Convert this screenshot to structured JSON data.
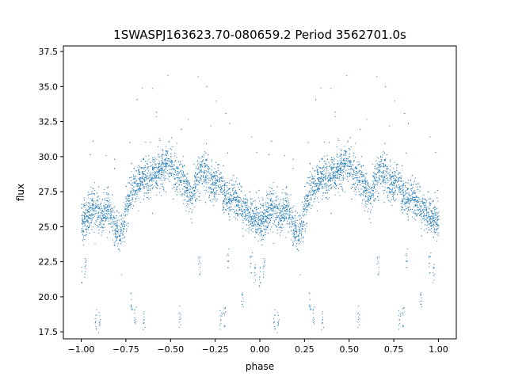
{
  "chart_data": {
    "type": "scatter",
    "title": "1SWASPJ163623.70-080659.2 Period 3562701.0s",
    "xlabel": "phase",
    "ylabel": "flux",
    "xlim": [
      -1.1,
      1.1
    ],
    "ylim": [
      17.0,
      37.9
    ],
    "xticks": [
      -1.0,
      -0.75,
      -0.5,
      -0.25,
      0.0,
      0.25,
      0.5,
      0.75,
      1.0
    ],
    "xtick_labels": [
      "−1.00",
      "−0.75",
      "−0.50",
      "−0.25",
      "0.00",
      "0.25",
      "0.50",
      "0.75",
      "1.00"
    ],
    "yticks": [
      17.5,
      20.0,
      22.5,
      25.0,
      27.5,
      30.0,
      32.5,
      35.0,
      37.5
    ],
    "ytick_labels": [
      "17.5",
      "20.0",
      "22.5",
      "25.0",
      "27.5",
      "30.0",
      "32.5",
      "35.0",
      "37.5"
    ],
    "grid": false,
    "marker_color": "#1f77b4",
    "series": [
      {
        "x_range": [
          -1.0,
          1.0
        ],
        "mirrored_period": 1.0,
        "phase_profile": [
          [
            0.0,
            25.4
          ],
          [
            0.03,
            25.6
          ],
          [
            0.06,
            26.6
          ],
          [
            0.09,
            26.0
          ],
          [
            0.12,
            25.6
          ],
          [
            0.15,
            26.4
          ],
          [
            0.18,
            25.3
          ],
          [
            0.2,
            24.8
          ],
          [
            0.22,
            24.6
          ],
          [
            0.25,
            26.2
          ],
          [
            0.28,
            27.8
          ],
          [
            0.31,
            28.0
          ],
          [
            0.34,
            28.6
          ],
          [
            0.37,
            28.4
          ],
          [
            0.4,
            28.8
          ],
          [
            0.43,
            28.9
          ],
          [
            0.46,
            29.2
          ],
          [
            0.5,
            29.6
          ],
          [
            0.53,
            28.7
          ],
          [
            0.56,
            28.4
          ],
          [
            0.59,
            27.6
          ],
          [
            0.62,
            27.4
          ],
          [
            0.65,
            28.6
          ],
          [
            0.68,
            29.2
          ],
          [
            0.71,
            28.7
          ],
          [
            0.74,
            28.0
          ],
          [
            0.77,
            28.5
          ],
          [
            0.8,
            27.4
          ],
          [
            0.83,
            26.9
          ],
          [
            0.86,
            27.0
          ],
          [
            0.89,
            26.6
          ],
          [
            0.92,
            26.2
          ],
          [
            0.95,
            25.8
          ],
          [
            0.98,
            25.5
          ],
          [
            1.0,
            25.4
          ]
        ],
        "low_outlier_clusters": [
          [
            0.0,
            21.5
          ],
          [
            0.02,
            22.0
          ],
          [
            0.08,
            18.3
          ],
          [
            0.1,
            18.2
          ],
          [
            0.28,
            19.6
          ],
          [
            0.3,
            18.8
          ],
          [
            0.35,
            18.4
          ],
          [
            0.55,
            18.6
          ],
          [
            0.66,
            22.1
          ],
          [
            0.78,
            18.3
          ],
          [
            0.8,
            18.5
          ],
          [
            0.82,
            22.7
          ],
          [
            0.9,
            19.8
          ],
          [
            0.95,
            22.5
          ],
          [
            0.97,
            21.8
          ]
        ]
      }
    ]
  }
}
